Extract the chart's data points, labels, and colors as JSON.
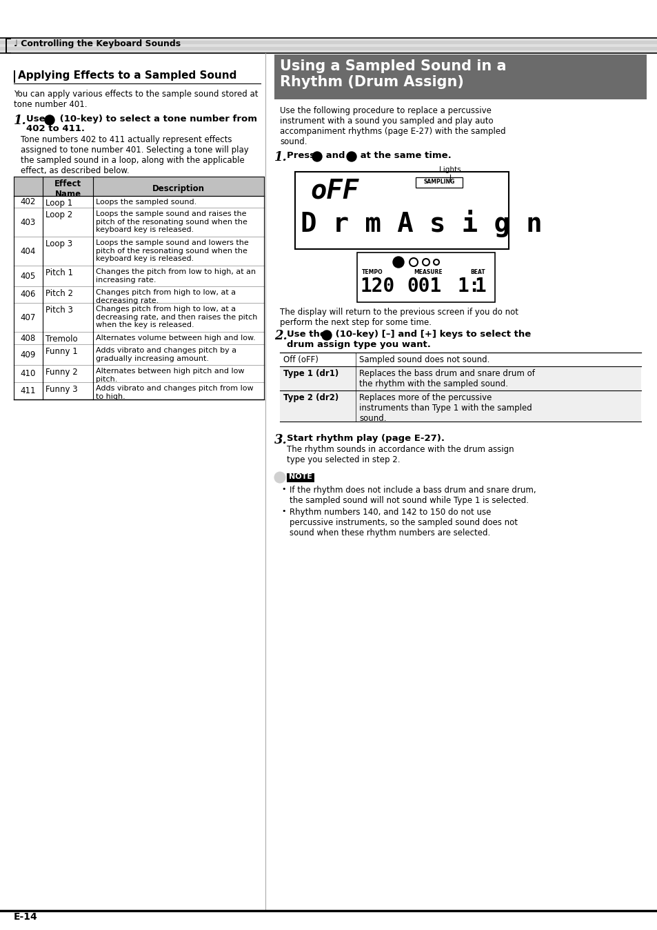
{
  "page_bg": "#ffffff",
  "header_text": "Controlling the Keyboard Sounds",
  "header_bg": "#d8d8d8",
  "left_title": "Applying Effects to a Sampled Sound",
  "right_section_title_line1": "Using a Sampled Sound in a",
  "right_section_title_line2": "Rhythm (Drum Assign)",
  "right_section_title_bg": "#6b6b6b",
  "right_section_title_color": "#ffffff",
  "footer_text": "E-14",
  "left_intro": "You can apply various effects to the sample sound stored at\ntone number 401.",
  "step1_left_body": "Tone numbers 402 to 411 actually represent effects\nassigned to tone number 401. Selecting a tone will play\nthe sampled sound in a loop, along with the applicable\neffect, as described below.",
  "table_header_bg": "#c0c0c0",
  "table_rows": [
    [
      "402",
      "Loop 1",
      "Loops the sampled sound."
    ],
    [
      "403",
      "Loop 2",
      "Loops the sample sound and raises the\npitch of the resonating sound when the\nkeyboard key is released."
    ],
    [
      "404",
      "Loop 3",
      "Loops the sample sound and lowers the\npitch of the resonating sound when the\nkeyboard key is released."
    ],
    [
      "405",
      "Pitch 1",
      "Changes the pitch from low to high, at an\nincreasing rate."
    ],
    [
      "406",
      "Pitch 2",
      "Changes pitch from high to low, at a\ndecreasing rate."
    ],
    [
      "407",
      "Pitch 3",
      "Changes pitch from high to low, at a\ndecreasing rate, and then raises the pitch\nwhen the key is released."
    ],
    [
      "408",
      "Tremolo",
      "Alternates volume between high and low."
    ],
    [
      "409",
      "Funny 1",
      "Adds vibrato and changes pitch by a\ngradually increasing amount."
    ],
    [
      "410",
      "Funny 2",
      "Alternates between high pitch and low\npitch."
    ],
    [
      "411",
      "Funny 3",
      "Adds vibrato and changes pitch from low\nto high."
    ]
  ],
  "right_intro": "Use the following procedure to replace a percussive\ninstrument with a sound you sampled and play auto\naccompaniment rhythms (page E-27) with the sampled\nsound.",
  "display_caption": "The display will return to the previous screen if you do not\nperform the next step for some time.",
  "drum_table_rows": [
    [
      "Off (oFF)",
      "Sampled sound does not sound.",
      false
    ],
    [
      "Type 1 (dr1)",
      "Replaces the bass drum and snare drum of\nthe rhythm with the sampled sound.",
      true
    ],
    [
      "Type 2 (dr2)",
      "Replaces more of the percussive\ninstruments than Type 1 with the sampled\nsound.",
      true
    ]
  ],
  "step3_body": "The rhythm sounds in accordance with the drum assign\ntype you selected in step 2.",
  "note_bullets": [
    "If the rhythm does not include a bass drum and snare drum,\nthe sampled sound will not sound while Type 1 is selected.",
    "Rhythm numbers 140, and 142 to 150 do not use\npercussive instruments, so the sampled sound does not\nsound when these rhythm numbers are selected."
  ]
}
